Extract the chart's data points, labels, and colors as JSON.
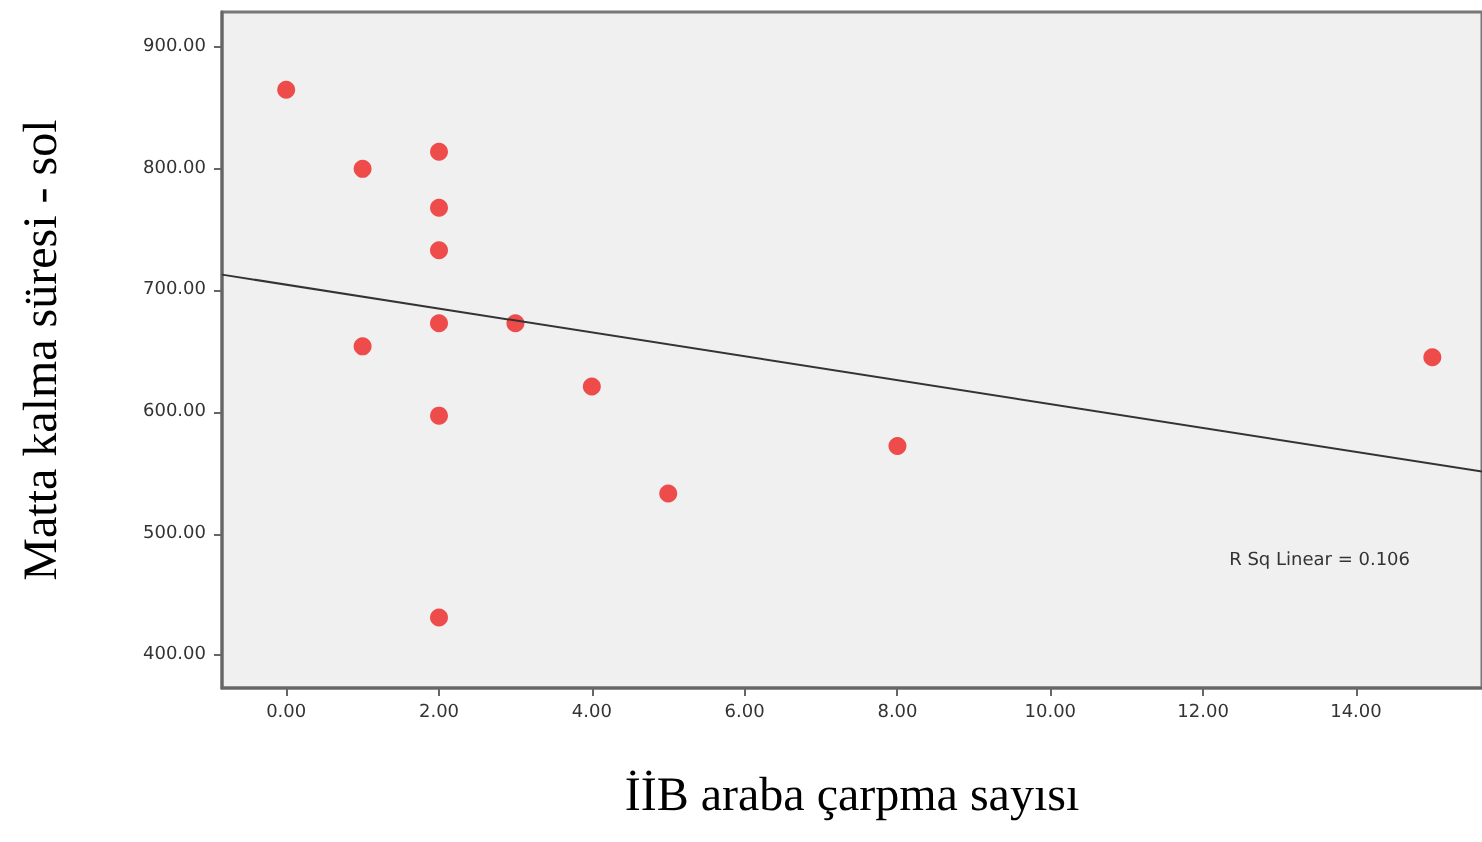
{
  "chart_data": {
    "type": "scatter",
    "xlabel": "İİB araba çarpma sayısı",
    "ylabel": "Matta kalma süresi - sol",
    "xlim": [
      -0.84,
      15.65
    ],
    "ylim": [
      373,
      929
    ],
    "xticks": [
      {
        "value": 0,
        "label": "0.00"
      },
      {
        "value": 2,
        "label": "2.00"
      },
      {
        "value": 4,
        "label": "4.00"
      },
      {
        "value": 6,
        "label": "6.00"
      },
      {
        "value": 8,
        "label": "8.00"
      },
      {
        "value": 10,
        "label": "10.00"
      },
      {
        "value": 12,
        "label": "12.00"
      },
      {
        "value": 14,
        "label": "14.00"
      }
    ],
    "yticks": [
      {
        "value": 400,
        "label": "400.00"
      },
      {
        "value": 500,
        "label": "500.00"
      },
      {
        "value": 600,
        "label": "600.00"
      },
      {
        "value": 700,
        "label": "700.00"
      },
      {
        "value": 800,
        "label": "800.00"
      },
      {
        "value": 900,
        "label": "900.00"
      }
    ],
    "grid": false,
    "marker": "circle",
    "annotations": [
      "R Sq Linear = 0.106"
    ],
    "series": [
      {
        "color": "#ee2222",
        "x": [
          0,
          1,
          2,
          2,
          2,
          2,
          3,
          1,
          4,
          2,
          5,
          2,
          8,
          15
        ],
        "values": [
          865,
          800,
          814,
          768,
          733,
          673,
          673,
          654,
          621,
          597,
          533,
          431,
          572,
          645
        ]
      },
      {
        "type": "line",
        "color": "#333333",
        "marker": "none",
        "x": [
          -0.84,
          15.65
        ],
        "values": [
          713,
          551
        ]
      }
    ]
  }
}
